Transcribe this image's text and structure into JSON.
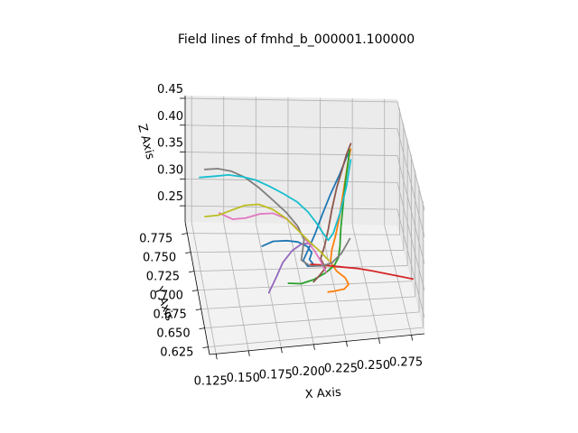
{
  "chart_data": {
    "type": "line3d",
    "title": "Field lines of fmhd_b_000001.100000",
    "xlabel": "X Axis",
    "ylabel": "Y Axis",
    "zlabel": "Z Axis",
    "x_ticks": [
      "0.125",
      "0.150",
      "0.175",
      "0.200",
      "0.225",
      "0.250",
      "0.275"
    ],
    "y_ticks": [
      "0.625",
      "0.650",
      "0.675",
      "0.700",
      "0.725",
      "0.750",
      "0.775"
    ],
    "z_ticks": [
      "0.25",
      "0.30",
      "0.35",
      "0.40",
      "0.45"
    ],
    "xlim": [
      0.12,
      0.285
    ],
    "ylim": [
      0.615,
      0.79
    ],
    "zlim": [
      0.22,
      0.455
    ],
    "grid": true,
    "colors": [
      "#1f77b4",
      "#ff7f0e",
      "#2ca02c",
      "#d62728",
      "#9467bd",
      "#8c564b",
      "#e377c2",
      "#7f7f7f",
      "#bcbd22",
      "#17becf"
    ],
    "series": [
      {
        "x": [
          0.172,
          0.18,
          0.19,
          0.198,
          0.205,
          0.208,
          0.206,
          0.21,
          0.205,
          0.202,
          0.206,
          0.212,
          0.218,
          0.225,
          0.233,
          0.24
        ],
        "y": [
          0.72,
          0.715,
          0.71,
          0.706,
          0.702,
          0.699,
          0.697,
          0.695,
          0.7,
          0.704,
          0.708,
          0.712,
          0.716,
          0.722,
          0.728,
          0.734
        ],
        "z": [
          0.27,
          0.285,
          0.292,
          0.294,
          0.29,
          0.282,
          0.272,
          0.262,
          0.256,
          0.262,
          0.275,
          0.3,
          0.33,
          0.36,
          0.39,
          0.42
        ]
      },
      {
        "x": [
          0.215,
          0.22,
          0.228,
          0.232,
          0.23,
          0.224,
          0.22,
          0.222,
          0.226,
          0.23,
          0.233,
          0.236,
          0.239,
          0.242
        ],
        "y": [
          0.65,
          0.652,
          0.655,
          0.66,
          0.666,
          0.671,
          0.678,
          0.686,
          0.695,
          0.705,
          0.713,
          0.72,
          0.727,
          0.733
        ],
        "z": [
          0.27,
          0.268,
          0.267,
          0.269,
          0.274,
          0.281,
          0.29,
          0.302,
          0.318,
          0.338,
          0.36,
          0.385,
          0.41,
          0.43
        ]
      },
      {
        "x": [
          0.185,
          0.195,
          0.205,
          0.215,
          0.222,
          0.226,
          0.228,
          0.23,
          0.233,
          0.236,
          0.239,
          0.241
        ],
        "y": [
          0.655,
          0.657,
          0.66,
          0.665,
          0.67,
          0.676,
          0.684,
          0.695,
          0.707,
          0.718,
          0.726,
          0.732
        ],
        "z": [
          0.285,
          0.28,
          0.282,
          0.287,
          0.293,
          0.3,
          0.31,
          0.33,
          0.355,
          0.385,
          0.41,
          0.43
        ]
      },
      {
        "x": [
          0.205,
          0.212,
          0.22,
          0.23,
          0.24,
          0.25,
          0.26,
          0.27,
          0.28
        ],
        "y": [
          0.68,
          0.676,
          0.672,
          0.668,
          0.664,
          0.66,
          0.656,
          0.652,
          0.648
        ],
        "z": [
          0.285,
          0.288,
          0.29,
          0.291,
          0.292,
          0.291,
          0.289,
          0.287,
          0.285
        ]
      },
      {
        "x": [
          0.17,
          0.176,
          0.182,
          0.19,
          0.198,
          0.204,
          0.208,
          0.21,
          0.212
        ],
        "y": [
          0.655,
          0.66,
          0.666,
          0.674,
          0.684,
          0.694,
          0.704,
          0.712,
          0.718
        ],
        "z": [
          0.27,
          0.29,
          0.31,
          0.32,
          0.318,
          0.306,
          0.292,
          0.28,
          0.27
        ]
      },
      {
        "x": [
          0.205,
          0.21,
          0.215,
          0.212,
          0.216,
          0.22,
          0.224,
          0.229,
          0.234,
          0.238,
          0.242
        ],
        "y": [
          0.66,
          0.664,
          0.668,
          0.674,
          0.682,
          0.692,
          0.703,
          0.714,
          0.722,
          0.728,
          0.733
        ],
        "z": [
          0.278,
          0.284,
          0.292,
          0.302,
          0.316,
          0.334,
          0.356,
          0.382,
          0.405,
          0.425,
          0.44
        ]
      },
      {
        "x": [
          0.14,
          0.15,
          0.16,
          0.17,
          0.18,
          0.19,
          0.198,
          0.204,
          0.21,
          0.214,
          0.216,
          0.218
        ],
        "y": [
          0.73,
          0.727,
          0.724,
          0.72,
          0.716,
          0.712,
          0.708,
          0.704,
          0.7,
          0.696,
          0.692,
          0.688
        ],
        "z": [
          0.32,
          0.312,
          0.318,
          0.33,
          0.336,
          0.33,
          0.316,
          0.3,
          0.285,
          0.272,
          0.264,
          0.258
        ]
      },
      {
        "x": [
          0.132,
          0.142,
          0.152,
          0.162,
          0.172,
          0.182,
          0.192,
          0.2,
          0.204,
          0.202,
          0.2,
          0.206,
          0.214,
          0.222,
          0.23,
          0.237
        ],
        "y": [
          0.76,
          0.758,
          0.756,
          0.752,
          0.746,
          0.74,
          0.732,
          0.724,
          0.716,
          0.708,
          0.7,
          0.694,
          0.69,
          0.688,
          0.69,
          0.695
        ],
        "z": [
          0.36,
          0.364,
          0.362,
          0.356,
          0.345,
          0.33,
          0.316,
          0.3,
          0.285,
          0.275,
          0.268,
          0.264,
          0.268,
          0.275,
          0.29,
          0.31
        ]
      },
      {
        "x": [
          0.13,
          0.14,
          0.15,
          0.16,
          0.17,
          0.18,
          0.19,
          0.198,
          0.206,
          0.214,
          0.22
        ],
        "y": [
          0.74,
          0.738,
          0.735,
          0.731,
          0.726,
          0.72,
          0.714,
          0.708,
          0.702,
          0.696,
          0.69
        ],
        "z": [
          0.3,
          0.305,
          0.318,
          0.332,
          0.34,
          0.338,
          0.328,
          0.314,
          0.3,
          0.288,
          0.278
        ]
      },
      {
        "x": [
          0.128,
          0.14,
          0.15,
          0.16,
          0.17,
          0.18,
          0.19,
          0.2,
          0.208,
          0.214,
          0.218,
          0.222,
          0.226,
          0.232,
          0.238,
          0.242
        ],
        "y": [
          0.76,
          0.758,
          0.756,
          0.752,
          0.748,
          0.742,
          0.736,
          0.73,
          0.724,
          0.718,
          0.714,
          0.71,
          0.712,
          0.718,
          0.726,
          0.733
        ],
        "z": [
          0.345,
          0.35,
          0.355,
          0.357,
          0.356,
          0.352,
          0.346,
          0.338,
          0.326,
          0.312,
          0.3,
          0.29,
          0.3,
          0.33,
          0.37,
          0.41
        ]
      }
    ]
  }
}
